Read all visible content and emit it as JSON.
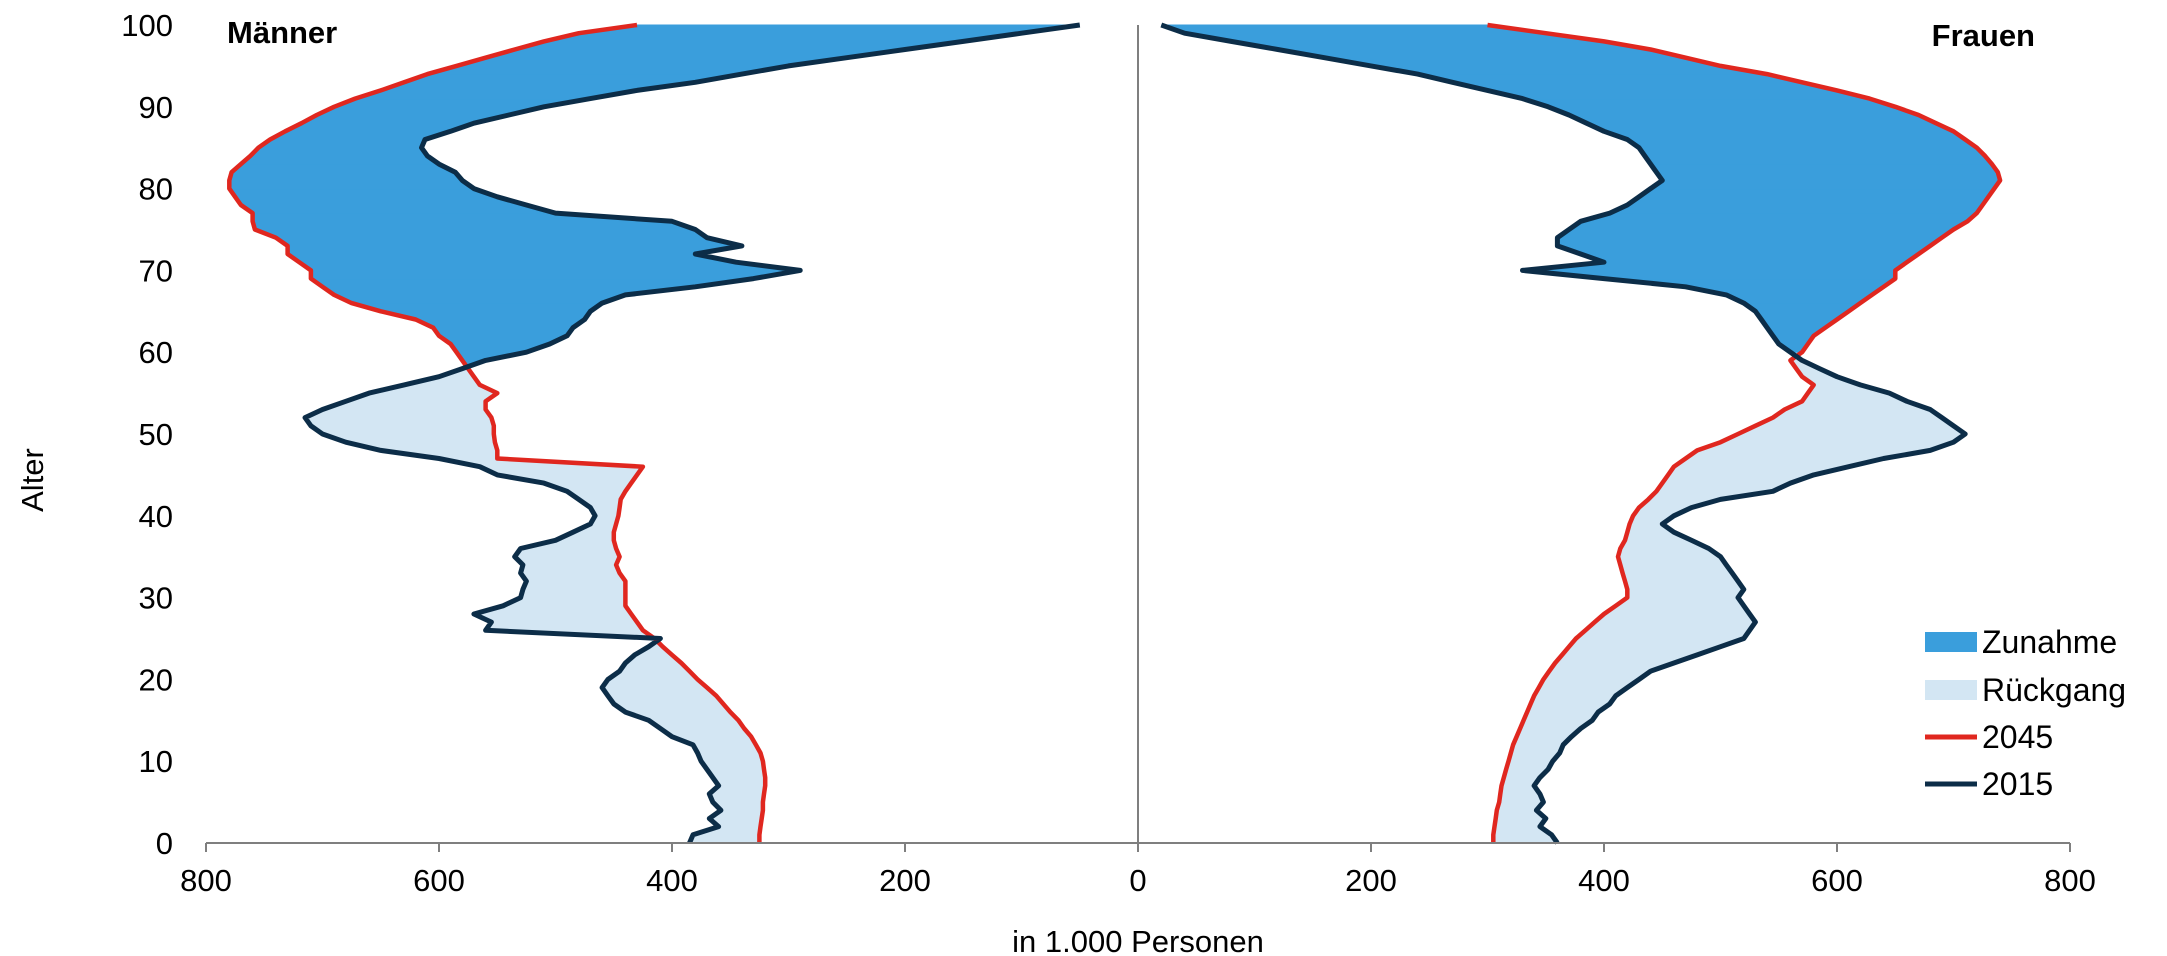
{
  "chart_data": {
    "type": "area",
    "subtype": "population-pyramid",
    "xlabel": "in 1.000 Personen",
    "ylabel": "Alter",
    "xlim": [
      0,
      800
    ],
    "ylim": [
      0,
      100
    ],
    "x_ticks": [
      800,
      600,
      400,
      200,
      0,
      200,
      400,
      600,
      800
    ],
    "y_ticks": [
      0,
      10,
      20,
      30,
      40,
      50,
      60,
      70,
      80,
      90,
      100
    ],
    "grid": false,
    "legend_position": "bottom-right",
    "panels": {
      "left": "Männer",
      "right": "Frauen"
    },
    "colors": {
      "zunahme": "#3a9edc",
      "rueckgang": "#d3e6f3",
      "y2045": "#e0271f",
      "y2015": "#0c2d48",
      "axis": "#7f7f7f"
    },
    "legend": [
      {
        "key": "zunahme",
        "label": "Zunahme",
        "kind": "fill"
      },
      {
        "key": "rueckgang",
        "label": "Rückgang",
        "kind": "fill"
      },
      {
        "key": "y2045",
        "label": "2045",
        "kind": "line"
      },
      {
        "key": "y2015",
        "label": "2015",
        "kind": "line"
      }
    ],
    "ages": [
      0,
      1,
      2,
      3,
      4,
      5,
      6,
      7,
      8,
      9,
      10,
      11,
      12,
      13,
      14,
      15,
      16,
      17,
      18,
      19,
      20,
      21,
      22,
      23,
      24,
      25,
      26,
      27,
      28,
      29,
      30,
      31,
      32,
      33,
      34,
      35,
      36,
      37,
      38,
      39,
      40,
      41,
      42,
      43,
      44,
      45,
      46,
      47,
      48,
      49,
      50,
      51,
      52,
      53,
      54,
      55,
      56,
      57,
      58,
      59,
      60,
      61,
      62,
      63,
      64,
      65,
      66,
      67,
      68,
      69,
      70,
      71,
      72,
      73,
      74,
      75,
      76,
      77,
      78,
      79,
      80,
      81,
      82,
      83,
      84,
      85,
      86,
      87,
      88,
      89,
      90,
      91,
      92,
      93,
      94,
      95,
      96,
      97,
      98,
      99,
      100
    ],
    "series": [
      {
        "name": "2015",
        "side": "Männer",
        "values": [
          385,
          382,
          360,
          368,
          358,
          365,
          368,
          360,
          365,
          370,
          375,
          378,
          382,
          400,
          410,
          420,
          440,
          450,
          455,
          460,
          455,
          445,
          440,
          432,
          420,
          410,
          560,
          555,
          570,
          545,
          530,
          528,
          525,
          530,
          528,
          535,
          530,
          500,
          485,
          470,
          466,
          470,
          480,
          490,
          510,
          550,
          565,
          600,
          650,
          680,
          700,
          710,
          715,
          700,
          680,
          660,
          630,
          600,
          580,
          560,
          525,
          505,
          490,
          485,
          475,
          470,
          460,
          440,
          380,
          330,
          290,
          345,
          380,
          340,
          370,
          380,
          400,
          500,
          525,
          550,
          570,
          580,
          586,
          600,
          610,
          615,
          612,
          590,
          570,
          540,
          510,
          470,
          430,
          380,
          340,
          300,
          250,
          200,
          150,
          100,
          50
        ]
      },
      {
        "name": "2045",
        "side": "Männer",
        "values": [
          325,
          325,
          324,
          323,
          322,
          322,
          321,
          320,
          320,
          321,
          322,
          324,
          328,
          332,
          338,
          343,
          350,
          356,
          362,
          370,
          378,
          385,
          392,
          400,
          408,
          415,
          425,
          430,
          435,
          440,
          440,
          440,
          440,
          445,
          448,
          445,
          448,
          450,
          450,
          448,
          446,
          445,
          444,
          440,
          435,
          430,
          425,
          550,
          550,
          552,
          553,
          553,
          555,
          560,
          560,
          550,
          565,
          570,
          575,
          580,
          585,
          590,
          600,
          605,
          620,
          650,
          675,
          690,
          700,
          710,
          710,
          720,
          730,
          730,
          740,
          758,
          760,
          760,
          770,
          775,
          780,
          780,
          778,
          770,
          762,
          755,
          745,
          732,
          718,
          705,
          690,
          672,
          650,
          630,
          610,
          585,
          560,
          535,
          510,
          480,
          430
        ]
      },
      {
        "name": "2015",
        "side": "Frauen",
        "values": [
          360,
          355,
          345,
          350,
          342,
          348,
          345,
          340,
          345,
          352,
          356,
          362,
          365,
          372,
          380,
          390,
          395,
          405,
          410,
          420,
          430,
          440,
          460,
          480,
          500,
          520,
          525,
          530,
          525,
          520,
          515,
          520,
          515,
          510,
          505,
          500,
          490,
          475,
          460,
          450,
          460,
          475,
          500,
          545,
          560,
          580,
          610,
          640,
          680,
          700,
          710,
          700,
          690,
          680,
          660,
          645,
          620,
          600,
          585,
          570,
          560,
          550,
          545,
          540,
          535,
          530,
          520,
          505,
          470,
          400,
          330,
          400,
          380,
          360,
          360,
          370,
          380,
          405,
          420,
          430,
          440,
          450,
          445,
          440,
          435,
          430,
          420,
          400,
          385,
          370,
          352,
          330,
          300,
          270,
          240,
          200,
          160,
          120,
          80,
          40,
          20
        ]
      },
      {
        "name": "2045",
        "side": "Frauen",
        "values": [
          305,
          305,
          306,
          307,
          308,
          310,
          311,
          312,
          314,
          316,
          318,
          320,
          322,
          325,
          328,
          331,
          334,
          337,
          340,
          344,
          348,
          353,
          358,
          364,
          370,
          376,
          384,
          392,
          400,
          410,
          420,
          420,
          418,
          416,
          414,
          412,
          414,
          418,
          420,
          422,
          425,
          430,
          438,
          445,
          450,
          455,
          460,
          470,
          480,
          500,
          515,
          530,
          545,
          555,
          570,
          575,
          580,
          570,
          565,
          560,
          570,
          575,
          580,
          590,
          600,
          610,
          620,
          630,
          640,
          650,
          650,
          660,
          670,
          680,
          690,
          700,
          712,
          720,
          725,
          730,
          735,
          740,
          738,
          733,
          727,
          720,
          710,
          700,
          685,
          670,
          650,
          628,
          600,
          570,
          540,
          500,
          470,
          440,
          400,
          350,
          300
        ]
      }
    ]
  }
}
